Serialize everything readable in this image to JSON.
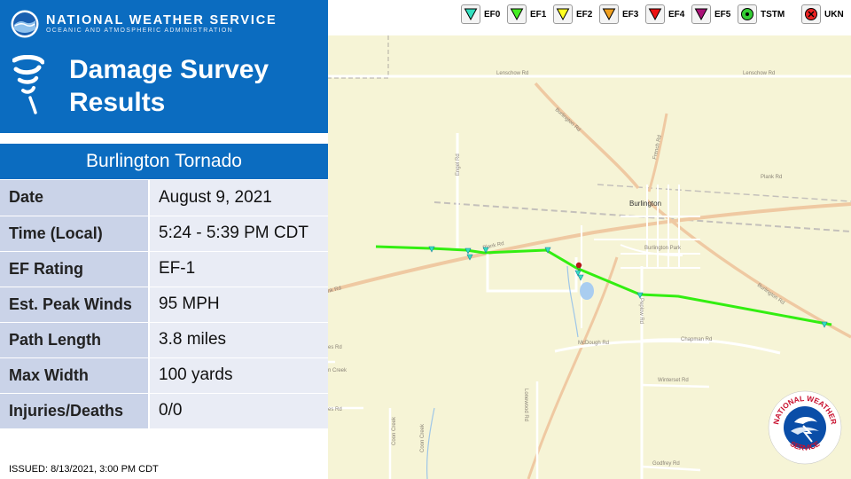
{
  "header": {
    "agency_name": "NATIONAL WEATHER SERVICE",
    "agency_subtitle": "OCEANIC AND ATMOSPHERIC ADMINISTRATION",
    "panel_title_line1": "Damage Survey",
    "panel_title_line2": "Results"
  },
  "event": {
    "title": "Burlington Tornado",
    "rows": [
      {
        "label": "Date",
        "value": "August 9, 2021"
      },
      {
        "label": "Time (Local)",
        "value": "5:24 - 5:39 PM CDT"
      },
      {
        "label": "EF Rating",
        "value": "EF-1"
      },
      {
        "label": "Est. Peak Winds",
        "value": "95 MPH"
      },
      {
        "label": "Path Length",
        "value": "3.8 miles"
      },
      {
        "label": "Max Width",
        "value": "100 yards"
      },
      {
        "label": "Injuries/Deaths",
        "value": "0/0"
      }
    ]
  },
  "issued": "ISSUED: 8/13/2021, 3:00 PM CDT",
  "legend": [
    {
      "label": "EF0",
      "color": "#33e0c0",
      "symbol": "triangle"
    },
    {
      "label": "EF1",
      "color": "#44ee22",
      "symbol": "triangle"
    },
    {
      "label": "EF2",
      "color": "#ffff22",
      "symbol": "triangle"
    },
    {
      "label": "EF3",
      "color": "#f0a020",
      "symbol": "triangle"
    },
    {
      "label": "EF4",
      "color": "#ee1111",
      "symbol": "triangle"
    },
    {
      "label": "EF5",
      "color": "#aa1177",
      "symbol": "triangle"
    },
    {
      "label": "TSTM",
      "color": "#33cc33",
      "symbol": "dot"
    },
    {
      "label": "UKN",
      "color": "#ee2222",
      "symbol": "x-circle"
    }
  ],
  "map": {
    "land_color": "#f6f4d6",
    "track_color": "#33ee11",
    "road_labels": [
      "Lenschow Rd",
      "Lenschow Rd",
      "Burlington Rd",
      "French Rd",
      "Plank Rd",
      "Plank Rd",
      "Burlington",
      "Burlington Park",
      "Engel Rd",
      "Burlington Rd",
      "Peplow Rd",
      "McDough Rd",
      "Chapman Rd",
      "Winterset Rd",
      "Lonewood Rd",
      "Coon Creek",
      "Coon Creek",
      "Godfrey Rd",
      "nk Rd",
      "n Creek",
      "es Rd",
      "es Rd"
    ]
  },
  "seal": {
    "top": "NATIONAL WEATHER",
    "bottom": "SERVICE"
  }
}
